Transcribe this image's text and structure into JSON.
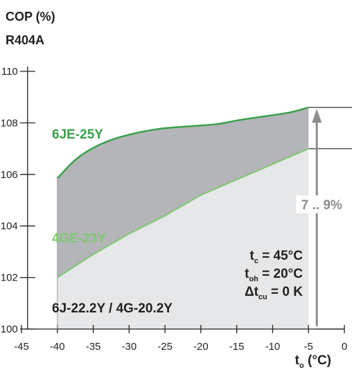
{
  "chart_data": {
    "type": "area",
    "title": "COP (%)",
    "subtitle": "R404A",
    "xlabel_main": "t",
    "xlabel_sub": "o",
    "xlabel_unit": " (°C)",
    "xlim": [
      -45,
      0
    ],
    "ylim": [
      100,
      110
    ],
    "xticks": [
      -45,
      -40,
      -35,
      -30,
      -25,
      -20,
      -15,
      -10,
      -5,
      0
    ],
    "yticks": [
      100,
      102,
      104,
      106,
      108,
      110
    ],
    "series": [
      {
        "name": "6JE-25Y",
        "color": "#3aa04a",
        "x": [
          -40,
          -37.5,
          -35,
          -32.5,
          -30,
          -27.5,
          -25,
          -22.5,
          -20,
          -17.5,
          -15,
          -12.5,
          -10,
          -7.5,
          -5
        ],
        "y": [
          105.85,
          106.6,
          107.05,
          107.35,
          107.55,
          107.7,
          107.8,
          107.85,
          107.9,
          107.95,
          108.1,
          108.2,
          108.3,
          108.4,
          108.6
        ]
      },
      {
        "name": "4GE-23Y",
        "color": "#7ec870",
        "x": [
          -40,
          -35,
          -30,
          -25,
          -20,
          -15,
          -10,
          -5
        ],
        "y": [
          102.0,
          102.9,
          103.7,
          104.4,
          105.2,
          105.8,
          106.4,
          107.0
        ]
      }
    ],
    "baseline_label": "6J-22.2Y / 4G-20.2Y",
    "range_annotation": "7 .. 9%",
    "conditions": [
      {
        "sym": "t",
        "sub": "c",
        "val": " = 45°C"
      },
      {
        "sym": "t",
        "sub": "oh",
        "val": " = 20°C"
      },
      {
        "sym": "Δt",
        "sub": "cu",
        "val": " = 0 K"
      }
    ],
    "colors": {
      "gap_fill": "#b4b5b8",
      "base_fill": "#e6e7e8",
      "axis": "#231f20",
      "annotation": "#8c8c8c"
    }
  }
}
